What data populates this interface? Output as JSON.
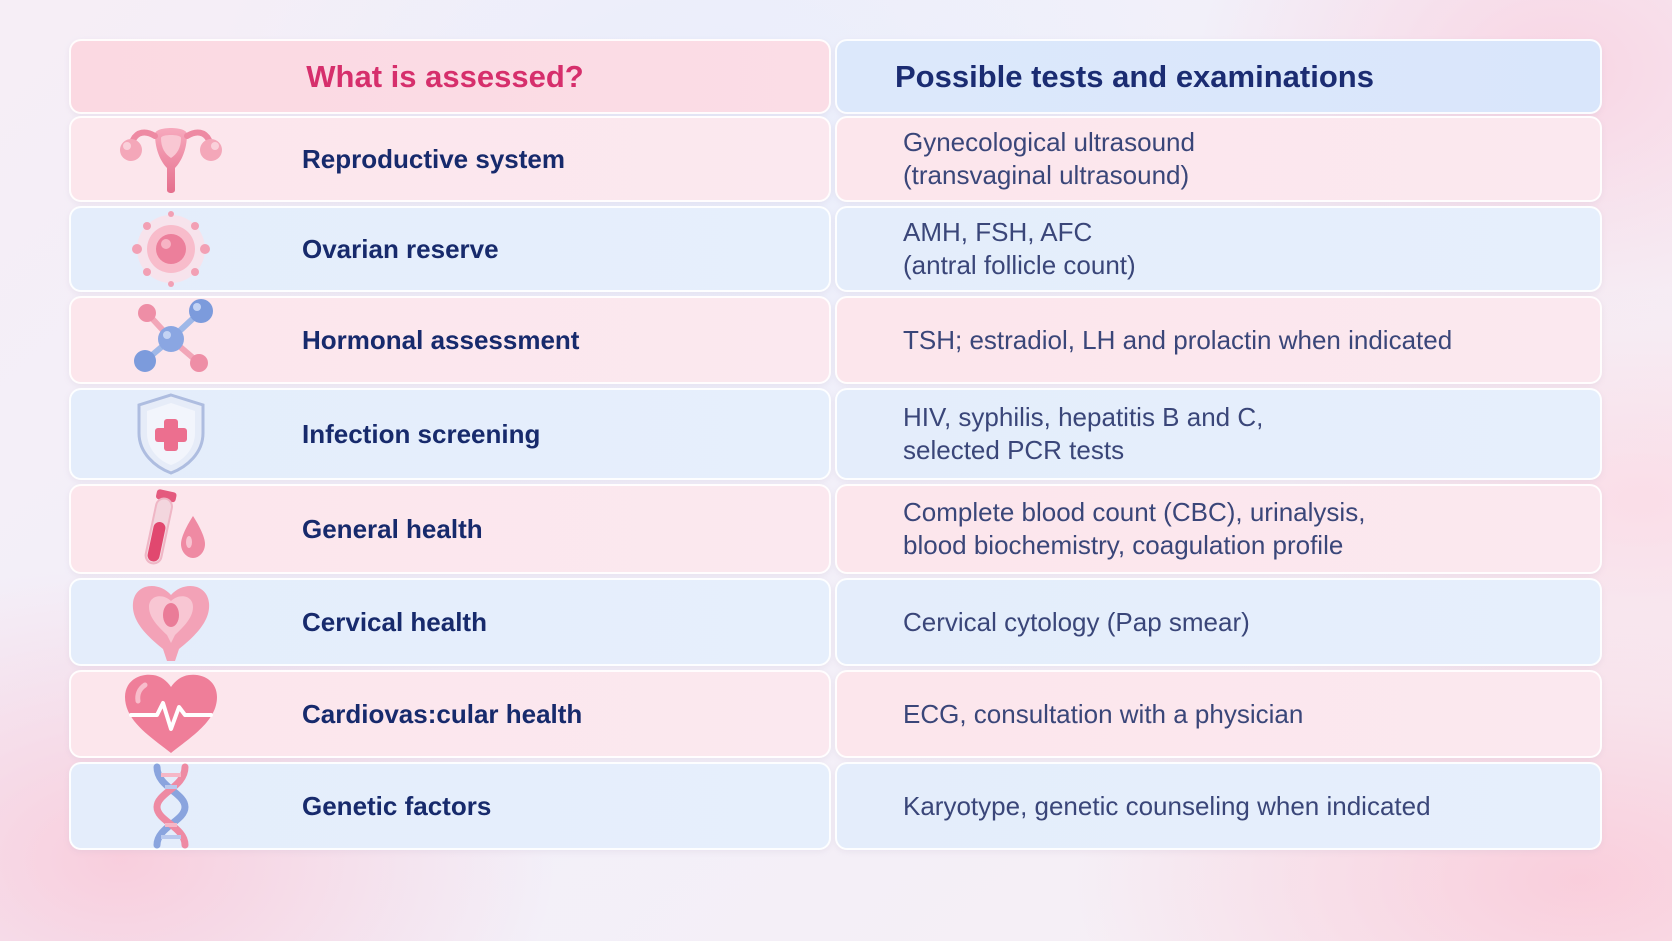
{
  "header": {
    "left": "What is assessed?",
    "right": "Possible tests and examinations"
  },
  "rows": [
    {
      "label": "Reproductive system",
      "lines": [
        "Gynecological ultrasound",
        "(transvaginal ultrasound)"
      ],
      "icon": "uterus-icon"
    },
    {
      "label": "Ovarian reserve",
      "lines": [
        "AMH, FSH, AFC",
        "(antral follicle count)"
      ],
      "icon": "egg-cell-icon"
    },
    {
      "label": "Hormonal assessment",
      "lines": [
        "TSH; estradiol, LH and prolactin when indicated"
      ],
      "icon": "molecule-icon"
    },
    {
      "label": "Infection screening",
      "lines": [
        "HIV, syphilis, hepatitis B and C,",
        "selected PCR tests"
      ],
      "icon": "shield-cross-icon"
    },
    {
      "label": "General health",
      "lines": [
        "Complete blood count (CBC), urinalysis,",
        "blood biochemistry, coagulation profile"
      ],
      "icon": "blood-tube-icon"
    },
    {
      "label": "Cervical health",
      "lines": [
        "Cervical cytology (Pap smear)"
      ],
      "icon": "cervix-icon"
    },
    {
      "label": "Cardiovas:cular health",
      "lines": [
        "ECG, consultation with a physician"
      ],
      "icon": "heart-pulse-icon"
    },
    {
      "label": "Genetic factors",
      "lines": [
        "Karyotype, genetic counseling when indicated"
      ],
      "icon": "dna-icon"
    }
  ],
  "colors": {
    "header_left_text": "#d62f6c",
    "header_right_text": "#1b2c72",
    "row_label": "#172a6c",
    "row_desc": "#3a4679",
    "pink_row": "#fce6ec",
    "blue_row": "#e4edfb"
  }
}
